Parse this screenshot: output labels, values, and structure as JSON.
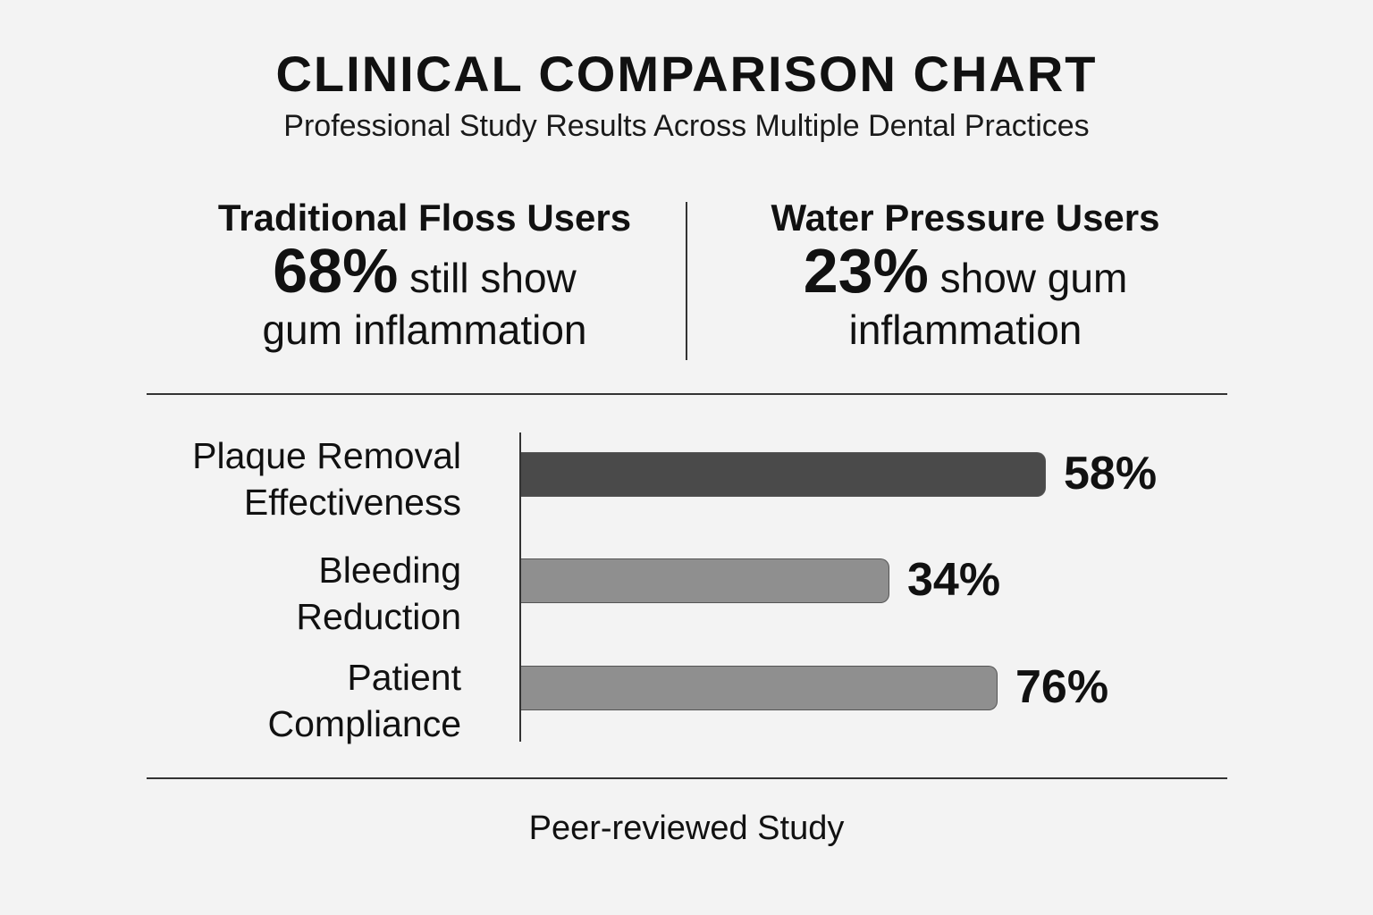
{
  "title": "CLINICAL COMPARISON CHART",
  "subtitle": "Professional Study Results Across Multiple Dental Practices",
  "comparison": {
    "left": {
      "heading": "Traditional Floss Users",
      "stat": "68%",
      "text_line1": "still show",
      "text_line2": "gum inflammation"
    },
    "right": {
      "heading": "Water Pressure Users",
      "stat": "23%",
      "text_line1": "show gum",
      "text_line2": "inflammation"
    }
  },
  "chart_data": {
    "type": "bar",
    "orientation": "horizontal",
    "categories": [
      [
        "Plaque Removal",
        "Effectiveness"
      ],
      [
        "Bleeding",
        "Reduction"
      ],
      [
        "Patient",
        "Compliance"
      ]
    ],
    "values": [
      58,
      34,
      76
    ],
    "value_labels": [
      "58%",
      "34%",
      "76%"
    ],
    "colors": [
      "#4a4a4a",
      "#8f8f8f",
      "#8f8f8f"
    ],
    "xlabel": "",
    "ylabel": ""
  },
  "footer": "Peer-reviewed Study"
}
